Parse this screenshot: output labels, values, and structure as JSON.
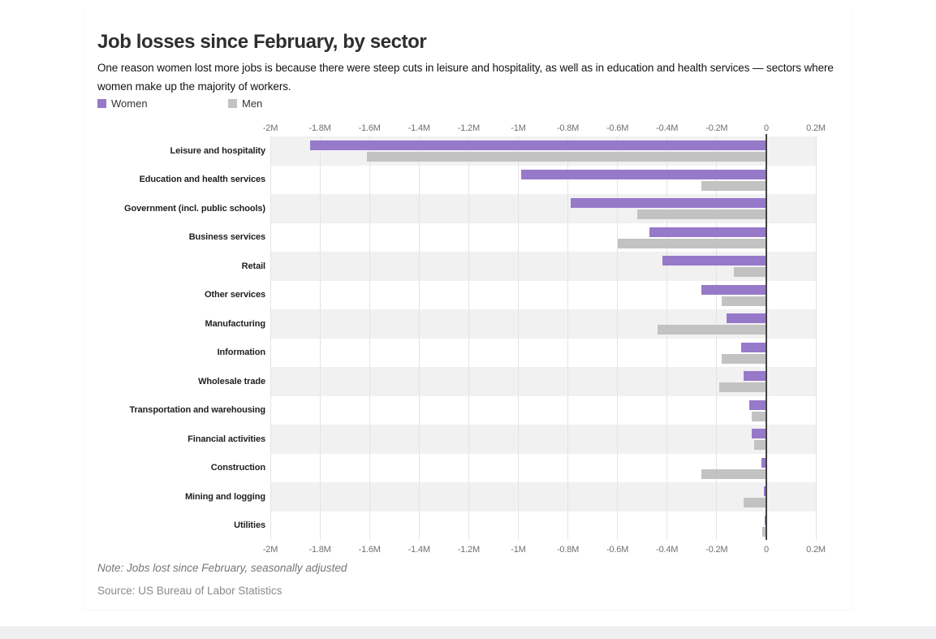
{
  "page": {
    "bottom_strip_color": "#efeef0",
    "card_background": "#ffffff"
  },
  "header": {
    "title": "Job losses since February, by sector",
    "subtitle": "One reason women lost more jobs is because there were steep cuts in leisure and hospitality, as well as in education and health services — sectors where women make up the majority of workers."
  },
  "legend": {
    "items": [
      {
        "label": "Women",
        "color": "#9779ca"
      },
      {
        "label": "Men",
        "color": "#c2c2c2"
      }
    ]
  },
  "chart_data": {
    "type": "bar",
    "orientation": "horizontal",
    "title": "Job losses since February, by sector",
    "unit": "millions of jobs (M)",
    "xlim": [
      -2,
      0.2
    ],
    "grid": true,
    "row_banding": "alternate shaded starting with first row",
    "legend_position": "top-left",
    "axis_labels_shown": "top and bottom",
    "band_color": "#f1f1f2",
    "grid_color": "#e4e4e6",
    "zero_line_color": "#424242",
    "x_ticks": [
      {
        "value": -2,
        "label": "-2M"
      },
      {
        "value": -1.8,
        "label": "-1.8M"
      },
      {
        "value": -1.6,
        "label": "-1.6M"
      },
      {
        "value": -1.4,
        "label": "-1.4M"
      },
      {
        "value": -1.2,
        "label": "-1.2M"
      },
      {
        "value": -1,
        "label": "-1M"
      },
      {
        "value": -0.8,
        "label": "-0.8M"
      },
      {
        "value": -0.6,
        "label": "-0.6M"
      },
      {
        "value": -0.4,
        "label": "-0.4M"
      },
      {
        "value": -0.2,
        "label": "-0.2M"
      },
      {
        "value": 0,
        "label": "0"
      },
      {
        "value": 0.2,
        "label": "0.2M"
      }
    ],
    "categories": [
      "Leisure and hospitality",
      "Education and health services",
      "Government (incl. public schools)",
      "Business services",
      "Retail",
      "Other services",
      "Manufacturing",
      "Information",
      "Wholesale trade",
      "Transportation and warehousing",
      "Financial activities",
      "Construction",
      "Mining and logging",
      "Utilities"
    ],
    "series": [
      {
        "name": "Women",
        "color": "#9779ca",
        "values": [
          -1.84,
          -0.99,
          -0.79,
          -0.47,
          -0.42,
          -0.26,
          -0.16,
          -0.1,
          -0.09,
          -0.07,
          -0.06,
          -0.02,
          -0.01,
          -0.005
        ]
      },
      {
        "name": "Men",
        "color": "#c2c2c2",
        "values": [
          -1.61,
          -0.26,
          -0.52,
          -0.6,
          -0.13,
          -0.18,
          -0.44,
          -0.18,
          -0.19,
          -0.06,
          -0.05,
          -0.26,
          -0.09,
          -0.015
        ]
      }
    ]
  },
  "footer": {
    "note": "Note: Jobs lost since February, seasonally adjusted",
    "source": "Source: US Bureau of Labor Statistics"
  }
}
